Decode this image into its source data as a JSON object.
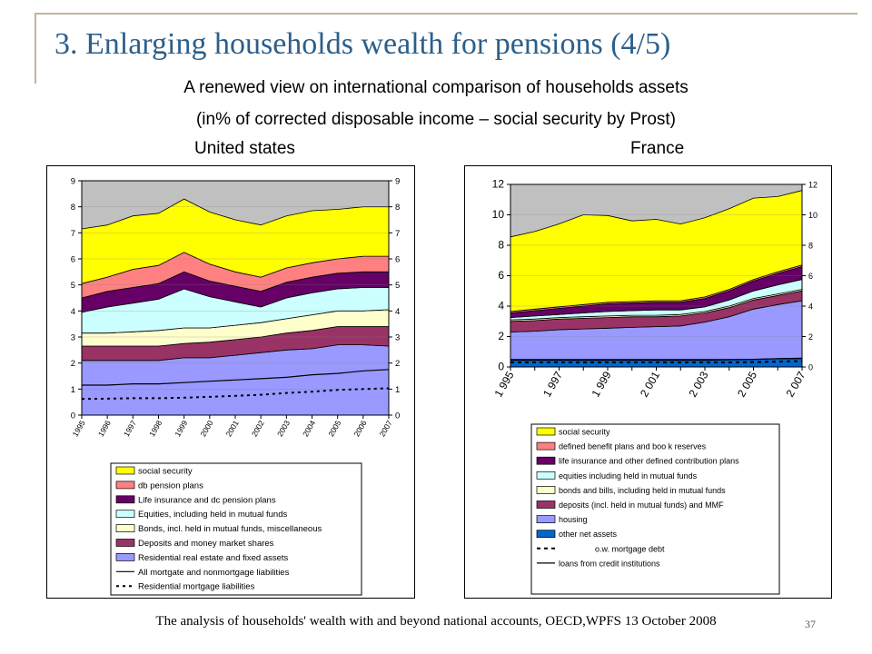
{
  "slide": {
    "title": "3. Enlarging households wealth for pensions (4/5)",
    "subtitle_line1": "A renewed view on international comparison of households assets",
    "subtitle_line2": "(in% of corrected disposable income – social security by Prost)",
    "footer": "The analysis of households' wealth with and beyond national accounts, OECD,WPFS 13 October 2008",
    "page_number": "37"
  },
  "chart_data": [
    {
      "type": "area",
      "title": "United states",
      "x": [
        "1995",
        "1996",
        "1997",
        "1998",
        "1999",
        "2000",
        "2001",
        "2002",
        "2003",
        "2004",
        "2005",
        "2006",
        "2007"
      ],
      "ylim": [
        0,
        9
      ],
      "yticks": [
        "0",
        "1",
        "2",
        "3",
        "4",
        "5",
        "6",
        "7",
        "8",
        "9"
      ],
      "grid": true,
      "legend_position": "bottom",
      "background_color": "#c0c0c0",
      "series": [
        {
          "name": "Residential real estate and fixed assets",
          "color": "#9999ff",
          "values": [
            2.1,
            2.1,
            2.1,
            2.1,
            2.2,
            2.2,
            2.3,
            2.4,
            2.5,
            2.55,
            2.7,
            2.7,
            2.65
          ]
        },
        {
          "name": "Deposits and money market shares",
          "color": "#993366",
          "values": [
            0.55,
            0.55,
            0.55,
            0.55,
            0.55,
            0.6,
            0.6,
            0.6,
            0.65,
            0.7,
            0.7,
            0.7,
            0.75
          ]
        },
        {
          "name": "Bonds, incl. held in mutual funds, miscellaneous",
          "color": "#ffffcc",
          "values": [
            0.5,
            0.5,
            0.55,
            0.6,
            0.6,
            0.55,
            0.55,
            0.55,
            0.55,
            0.6,
            0.6,
            0.6,
            0.65
          ]
        },
        {
          "name": "Equities, including held in mutual funds",
          "color": "#ccffff",
          "values": [
            0.8,
            1.0,
            1.1,
            1.2,
            1.5,
            1.2,
            0.9,
            0.6,
            0.8,
            0.85,
            0.85,
            0.9,
            0.85
          ]
        },
        {
          "name": "Life insurance and dc pension plans",
          "color": "#660066",
          "values": [
            0.55,
            0.6,
            0.6,
            0.6,
            0.65,
            0.6,
            0.6,
            0.6,
            0.6,
            0.6,
            0.6,
            0.6,
            0.6
          ]
        },
        {
          "name": "db pension plans",
          "color": "#ff8080",
          "values": [
            0.55,
            0.55,
            0.7,
            0.7,
            0.75,
            0.65,
            0.55,
            0.55,
            0.55,
            0.55,
            0.55,
            0.6,
            0.6
          ]
        },
        {
          "name": "social security",
          "color": "#ffff00",
          "values": [
            2.1,
            2.0,
            2.05,
            2.0,
            2.05,
            2.0,
            2.0,
            2.0,
            2.0,
            2.0,
            1.9,
            1.9,
            1.9
          ]
        }
      ],
      "lines": [
        {
          "name": "All mortgate and nonmortgage liabilities",
          "style": "solid",
          "values": [
            1.15,
            1.15,
            1.2,
            1.2,
            1.25,
            1.3,
            1.35,
            1.4,
            1.45,
            1.55,
            1.6,
            1.7,
            1.75
          ]
        },
        {
          "name": "Residential mortgage liabilities",
          "style": "dotted",
          "values": [
            0.62,
            0.63,
            0.65,
            0.65,
            0.67,
            0.7,
            0.74,
            0.78,
            0.85,
            0.9,
            0.97,
            1.0,
            1.03
          ]
        }
      ]
    },
    {
      "type": "area",
      "title": "France",
      "x": [
        "1995",
        "1996",
        "1997",
        "1998",
        "1999",
        "2000",
        "2001",
        "2002",
        "2003",
        "2004",
        "2005",
        "2006",
        "2007"
      ],
      "x_tick_labels": [
        "1 995",
        "1 997",
        "1 999",
        "2 001",
        "2 003",
        "2 005",
        "2 007"
      ],
      "ylim": [
        0,
        12
      ],
      "yticks_left": [
        "0",
        "2",
        "4",
        "6",
        "8",
        "10",
        "12"
      ],
      "yticks_right": [
        "0",
        "2",
        "4",
        "6",
        "8",
        "10",
        "12"
      ],
      "grid": true,
      "legend_position": "bottom",
      "background_color": "#c0c0c0",
      "series": [
        {
          "name": "other net assets",
          "color": "#0066cc",
          "values": [
            0.5,
            0.5,
            0.5,
            0.5,
            0.5,
            0.5,
            0.5,
            0.5,
            0.5,
            0.5,
            0.5,
            0.55,
            0.55
          ]
        },
        {
          "name": "housing",
          "color": "#9999ff",
          "values": [
            1.8,
            1.85,
            1.95,
            2.0,
            2.05,
            2.1,
            2.15,
            2.2,
            2.45,
            2.8,
            3.3,
            3.55,
            3.8
          ]
        },
        {
          "name": "deposits (incl. held in mutual funds) and MMF",
          "color": "#993366",
          "values": [
            0.7,
            0.7,
            0.7,
            0.7,
            0.7,
            0.7,
            0.65,
            0.65,
            0.6,
            0.6,
            0.6,
            0.6,
            0.65
          ]
        },
        {
          "name": "bonds and bills, including held in mutual funds",
          "color": "#ffffcc",
          "values": [
            0.1,
            0.1,
            0.1,
            0.1,
            0.1,
            0.1,
            0.1,
            0.1,
            0.1,
            0.1,
            0.1,
            0.1,
            0.1
          ]
        },
        {
          "name": "equities including held in mutual funds",
          "color": "#ccffff",
          "values": [
            0.15,
            0.2,
            0.2,
            0.25,
            0.3,
            0.3,
            0.35,
            0.3,
            0.3,
            0.4,
            0.5,
            0.6,
            0.65
          ]
        },
        {
          "name": "life insurance and other defined contribution plans",
          "color": "#660066",
          "values": [
            0.3,
            0.35,
            0.4,
            0.45,
            0.5,
            0.5,
            0.5,
            0.5,
            0.55,
            0.6,
            0.65,
            0.75,
            0.85
          ]
        },
        {
          "name": "defined benefit plans and boo k reserves",
          "color": "#ff8080",
          "values": [
            0.1,
            0.1,
            0.1,
            0.1,
            0.1,
            0.1,
            0.1,
            0.1,
            0.1,
            0.1,
            0.1,
            0.1,
            0.1
          ]
        },
        {
          "name": "social security",
          "color": "#ffff00",
          "values": [
            4.9,
            5.1,
            5.45,
            5.9,
            5.7,
            5.3,
            5.35,
            5.05,
            5.2,
            5.3,
            5.35,
            4.95,
            4.9
          ]
        }
      ],
      "lines": [
        {
          "name": "o.w. mortgage debt",
          "style": "dashed",
          "values": [
            0.3,
            0.3,
            0.3,
            0.3,
            0.3,
            0.3,
            0.3,
            0.3,
            0.3,
            0.3,
            0.32,
            0.35,
            0.38
          ]
        },
        {
          "name": "loans from credit institutions",
          "style": "solid",
          "values": [
            0.45,
            0.45,
            0.45,
            0.45,
            0.45,
            0.45,
            0.45,
            0.45,
            0.45,
            0.48,
            0.5,
            0.55,
            0.58
          ]
        }
      ]
    }
  ]
}
